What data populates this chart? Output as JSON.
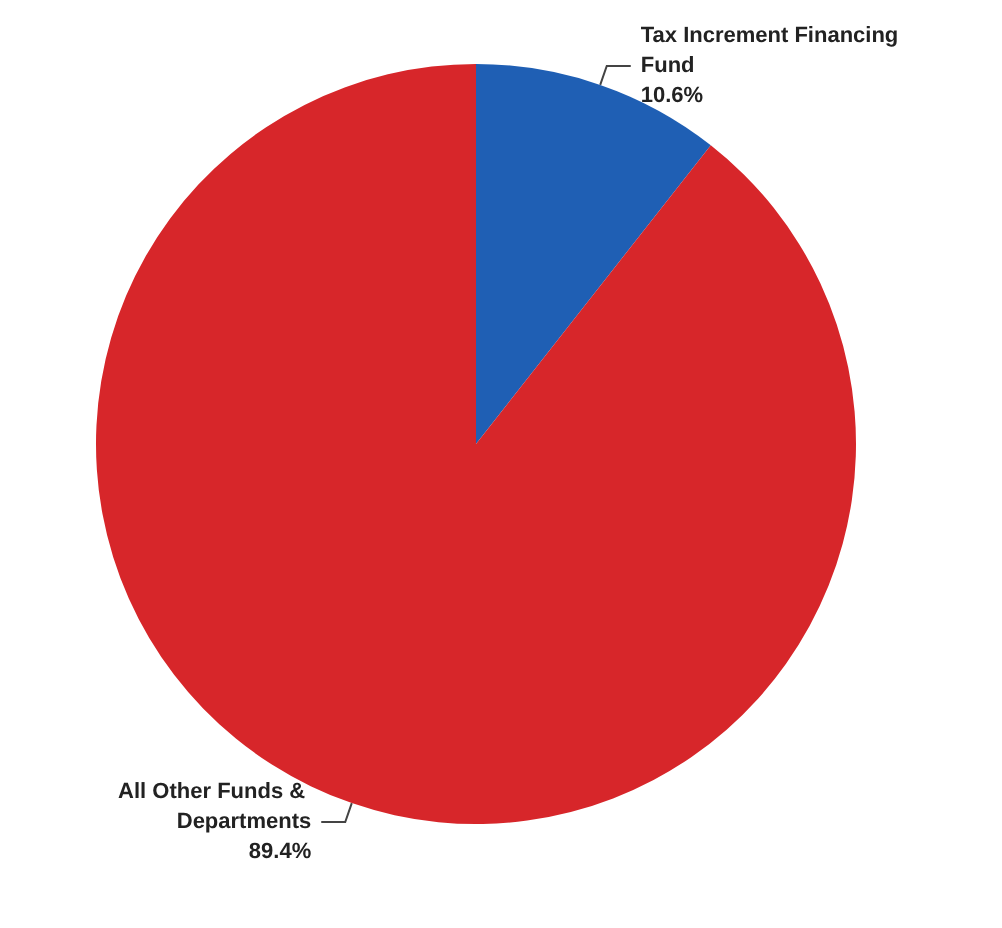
{
  "chart_data": {
    "type": "pie",
    "categories": [
      "Tax Increment Financing Fund",
      "All Other Funds & Departments"
    ],
    "values": [
      10.6,
      89.4
    ],
    "colors": [
      "#1f5fb4",
      "#d7262a"
    ],
    "value_labels": [
      "10.6%",
      "89.4%"
    ],
    "legend": false
  }
}
